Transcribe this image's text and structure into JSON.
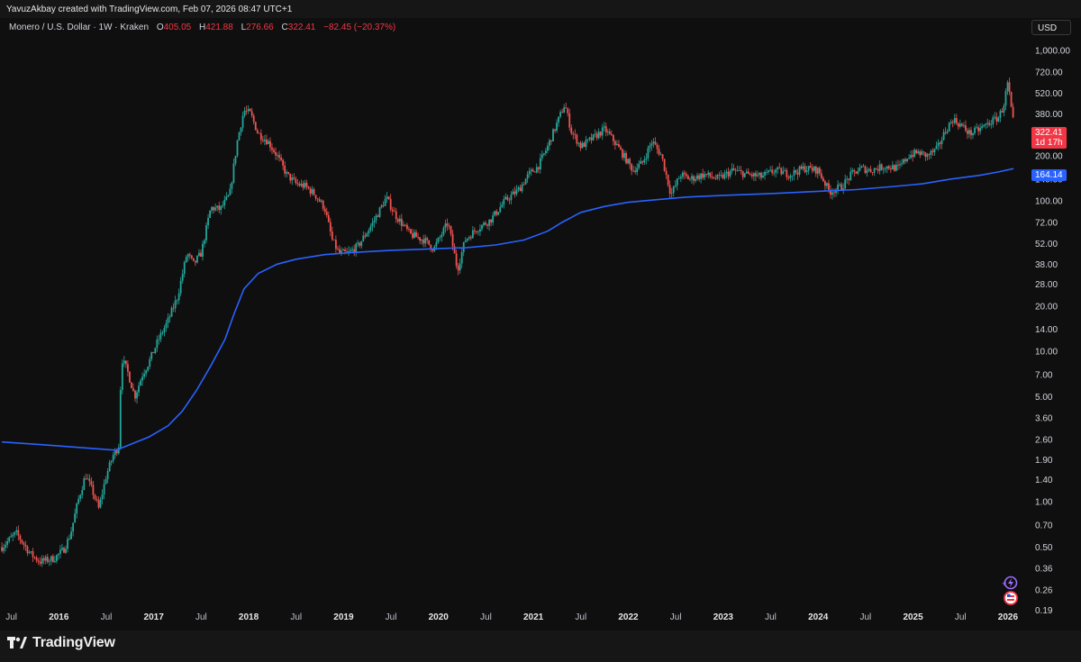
{
  "header": {
    "created_text": "YavuzAkbay created with TradingView.com, Feb 07, 2026 08:47 UTC+1"
  },
  "legend": {
    "symbol": "Monero / U.S. Dollar · 1W · Kraken",
    "o_label": "O",
    "o_value": "405.05",
    "h_label": "H",
    "h_value": "421.88",
    "l_label": "L",
    "l_value": "276.66",
    "c_label": "C",
    "c_value": "322.41",
    "change": "−82.45 (−20.37%)"
  },
  "currency": "USD",
  "price_tags": {
    "last_price": "322.41",
    "countdown": "1d 17h",
    "ma_value": "164.14"
  },
  "footer": {
    "brand": "TradingView"
  },
  "colors": {
    "background": "#0f0f0f",
    "up": "#26a69a",
    "down": "#ef5350",
    "ma_line": "#2962ff",
    "last_price_tag": "#f23645",
    "ma_tag": "#2962ff"
  },
  "chart_data": {
    "type": "candlestick",
    "symbol": "XMR/USD",
    "interval": "1W",
    "exchange": "Kraken",
    "y_scale": "log",
    "ylim": [
      0.16,
      1250
    ],
    "x_tick_labels": [
      "Jul",
      "2016",
      "Jul",
      "2017",
      "Jul",
      "2018",
      "Jul",
      "2019",
      "Jul",
      "2020",
      "Jul",
      "2021",
      "Jul",
      "2022",
      "Jul",
      "2023",
      "Jul",
      "2024",
      "Jul",
      "2025",
      "Jul",
      "2026"
    ],
    "x_tick_dates": [
      2015.5,
      2016.0,
      2016.5,
      2017.0,
      2017.5,
      2018.0,
      2018.5,
      2019.0,
      2019.5,
      2020.0,
      2020.5,
      2021.0,
      2021.5,
      2022.0,
      2022.5,
      2023.0,
      2023.5,
      2024.0,
      2024.5,
      2025.0,
      2025.5,
      2026.0
    ],
    "y_tick_labels": [
      "1,000.00",
      "720.00",
      "520.00",
      "380.00",
      "200.00",
      "140.00",
      "100.00",
      "72.00",
      "52.00",
      "38.00",
      "28.00",
      "20.00",
      "14.00",
      "10.00",
      "7.00",
      "5.00",
      "3.60",
      "2.60",
      "1.90",
      "1.40",
      "1.00",
      "0.70",
      "0.50",
      "0.36",
      "0.26",
      "0.19"
    ],
    "y_tick_values": [
      1000,
      720,
      520,
      380,
      200,
      140,
      100,
      72,
      52,
      38,
      28,
      20,
      14,
      10,
      7,
      5,
      3.6,
      2.6,
      1.9,
      1.4,
      1.0,
      0.7,
      0.5,
      0.36,
      0.26,
      0.19
    ],
    "price_path": [
      {
        "t": 2015.4,
        "p": 0.5
      },
      {
        "t": 2015.55,
        "p": 0.62
      },
      {
        "t": 2015.7,
        "p": 0.45
      },
      {
        "t": 2015.8,
        "p": 0.4
      },
      {
        "t": 2015.95,
        "p": 0.42
      },
      {
        "t": 2016.05,
        "p": 0.48
      },
      {
        "t": 2016.12,
        "p": 0.6
      },
      {
        "t": 2016.2,
        "p": 1.0
      },
      {
        "t": 2016.28,
        "p": 1.5
      },
      {
        "t": 2016.35,
        "p": 1.2
      },
      {
        "t": 2016.42,
        "p": 0.9
      },
      {
        "t": 2016.5,
        "p": 1.5
      },
      {
        "t": 2016.58,
        "p": 2.1
      },
      {
        "t": 2016.63,
        "p": 2.3
      },
      {
        "t": 2016.66,
        "p": 9.0
      },
      {
        "t": 2016.72,
        "p": 7.5
      },
      {
        "t": 2016.8,
        "p": 5.0
      },
      {
        "t": 2016.88,
        "p": 7.0
      },
      {
        "t": 2016.95,
        "p": 8.5
      },
      {
        "t": 2017.05,
        "p": 12.0
      },
      {
        "t": 2017.15,
        "p": 16.0
      },
      {
        "t": 2017.25,
        "p": 23.0
      },
      {
        "t": 2017.35,
        "p": 45.0
      },
      {
        "t": 2017.42,
        "p": 38.0
      },
      {
        "t": 2017.5,
        "p": 45.0
      },
      {
        "t": 2017.6,
        "p": 90.0
      },
      {
        "t": 2017.7,
        "p": 88.0
      },
      {
        "t": 2017.8,
        "p": 110.0
      },
      {
        "t": 2017.88,
        "p": 250.0
      },
      {
        "t": 2017.95,
        "p": 400.0
      },
      {
        "t": 2018.02,
        "p": 380.0
      },
      {
        "t": 2018.1,
        "p": 280.0
      },
      {
        "t": 2018.2,
        "p": 250.0
      },
      {
        "t": 2018.3,
        "p": 200.0
      },
      {
        "t": 2018.4,
        "p": 150.0
      },
      {
        "t": 2018.5,
        "p": 130.0
      },
      {
        "t": 2018.6,
        "p": 125.0
      },
      {
        "t": 2018.7,
        "p": 110.0
      },
      {
        "t": 2018.8,
        "p": 90.0
      },
      {
        "t": 2018.88,
        "p": 55.0
      },
      {
        "t": 2018.95,
        "p": 45.0
      },
      {
        "t": 2019.05,
        "p": 45.0
      },
      {
        "t": 2019.15,
        "p": 50.0
      },
      {
        "t": 2019.3,
        "p": 70.0
      },
      {
        "t": 2019.45,
        "p": 105.0
      },
      {
        "t": 2019.55,
        "p": 80.0
      },
      {
        "t": 2019.7,
        "p": 60.0
      },
      {
        "t": 2019.85,
        "p": 55.0
      },
      {
        "t": 2019.95,
        "p": 48.0
      },
      {
        "t": 2020.1,
        "p": 72.0
      },
      {
        "t": 2020.2,
        "p": 35.0
      },
      {
        "t": 2020.28,
        "p": 55.0
      },
      {
        "t": 2020.4,
        "p": 65.0
      },
      {
        "t": 2020.55,
        "p": 75.0
      },
      {
        "t": 2020.7,
        "p": 100.0
      },
      {
        "t": 2020.85,
        "p": 120.0
      },
      {
        "t": 2020.95,
        "p": 150.0
      },
      {
        "t": 2021.05,
        "p": 170.0
      },
      {
        "t": 2021.15,
        "p": 230.0
      },
      {
        "t": 2021.25,
        "p": 330.0
      },
      {
        "t": 2021.33,
        "p": 440.0
      },
      {
        "t": 2021.4,
        "p": 290.0
      },
      {
        "t": 2021.5,
        "p": 230.0
      },
      {
        "t": 2021.62,
        "p": 260.0
      },
      {
        "t": 2021.75,
        "p": 300.0
      },
      {
        "t": 2021.85,
        "p": 250.0
      },
      {
        "t": 2021.95,
        "p": 200.0
      },
      {
        "t": 2022.05,
        "p": 160.0
      },
      {
        "t": 2022.15,
        "p": 180.0
      },
      {
        "t": 2022.25,
        "p": 250.0
      },
      {
        "t": 2022.35,
        "p": 200.0
      },
      {
        "t": 2022.45,
        "p": 110.0
      },
      {
        "t": 2022.55,
        "p": 150.0
      },
      {
        "t": 2022.65,
        "p": 140.0
      },
      {
        "t": 2022.8,
        "p": 150.0
      },
      {
        "t": 2022.95,
        "p": 140.0
      },
      {
        "t": 2023.1,
        "p": 160.0
      },
      {
        "t": 2023.25,
        "p": 150.0
      },
      {
        "t": 2023.4,
        "p": 145.0
      },
      {
        "t": 2023.55,
        "p": 160.0
      },
      {
        "t": 2023.7,
        "p": 150.0
      },
      {
        "t": 2023.85,
        "p": 165.0
      },
      {
        "t": 2024.0,
        "p": 160.0
      },
      {
        "t": 2024.12,
        "p": 115.0
      },
      {
        "t": 2024.25,
        "p": 125.0
      },
      {
        "t": 2024.35,
        "p": 150.0
      },
      {
        "t": 2024.45,
        "p": 165.0
      },
      {
        "t": 2024.55,
        "p": 160.0
      },
      {
        "t": 2024.7,
        "p": 170.0
      },
      {
        "t": 2024.85,
        "p": 165.0
      },
      {
        "t": 2024.95,
        "p": 200.0
      },
      {
        "t": 2025.05,
        "p": 210.0
      },
      {
        "t": 2025.15,
        "p": 200.0
      },
      {
        "t": 2025.25,
        "p": 220.0
      },
      {
        "t": 2025.35,
        "p": 300.0
      },
      {
        "t": 2025.42,
        "p": 350.0
      },
      {
        "t": 2025.5,
        "p": 320.0
      },
      {
        "t": 2025.6,
        "p": 280.0
      },
      {
        "t": 2025.7,
        "p": 300.0
      },
      {
        "t": 2025.8,
        "p": 330.0
      },
      {
        "t": 2025.9,
        "p": 360.0
      },
      {
        "t": 2025.95,
        "p": 420.0
      },
      {
        "t": 2026.0,
        "p": 620.0
      },
      {
        "t": 2026.03,
        "p": 420.0
      },
      {
        "t": 2026.06,
        "p": 322.41
      }
    ],
    "moving_average": {
      "name": "Moving average",
      "last_value": 164.14,
      "points": [
        {
          "t": 2015.4,
          "p": 2.5
        },
        {
          "t": 2015.8,
          "p": 2.4
        },
        {
          "t": 2016.2,
          "p": 2.3
        },
        {
          "t": 2016.6,
          "p": 2.2
        },
        {
          "t": 2016.75,
          "p": 2.4
        },
        {
          "t": 2016.95,
          "p": 2.7
        },
        {
          "t": 2017.15,
          "p": 3.2
        },
        {
          "t": 2017.3,
          "p": 4.0
        },
        {
          "t": 2017.45,
          "p": 5.5
        },
        {
          "t": 2017.6,
          "p": 8.0
        },
        {
          "t": 2017.75,
          "p": 12.0
        },
        {
          "t": 2017.85,
          "p": 18.0
        },
        {
          "t": 2017.95,
          "p": 26.0
        },
        {
          "t": 2018.1,
          "p": 33.0
        },
        {
          "t": 2018.3,
          "p": 38.0
        },
        {
          "t": 2018.5,
          "p": 41.0
        },
        {
          "t": 2018.8,
          "p": 44.0
        },
        {
          "t": 2019.1,
          "p": 45.5
        },
        {
          "t": 2019.5,
          "p": 47.0
        },
        {
          "t": 2019.9,
          "p": 48.0
        },
        {
          "t": 2020.3,
          "p": 49.0
        },
        {
          "t": 2020.6,
          "p": 51.0
        },
        {
          "t": 2020.9,
          "p": 55.0
        },
        {
          "t": 2021.15,
          "p": 63.0
        },
        {
          "t": 2021.3,
          "p": 72.0
        },
        {
          "t": 2021.5,
          "p": 84.0
        },
        {
          "t": 2021.75,
          "p": 92.0
        },
        {
          "t": 2022.0,
          "p": 98.0
        },
        {
          "t": 2022.3,
          "p": 102.0
        },
        {
          "t": 2022.6,
          "p": 106.0
        },
        {
          "t": 2023.0,
          "p": 109.0
        },
        {
          "t": 2023.5,
          "p": 112.0
        },
        {
          "t": 2024.0,
          "p": 116.0
        },
        {
          "t": 2024.4,
          "p": 119.0
        },
        {
          "t": 2024.8,
          "p": 125.0
        },
        {
          "t": 2025.1,
          "p": 130.0
        },
        {
          "t": 2025.4,
          "p": 140.0
        },
        {
          "t": 2025.7,
          "p": 148.0
        },
        {
          "t": 2025.9,
          "p": 156.0
        },
        {
          "t": 2026.06,
          "p": 164.14
        }
      ]
    }
  }
}
